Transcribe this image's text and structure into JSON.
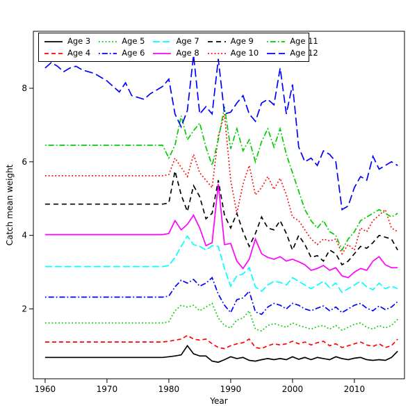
{
  "chart_data": {
    "type": "line",
    "title": "",
    "xlabel": "Year",
    "ylabel": "Catch mean weight",
    "x_start": 1960,
    "x_end": 2017,
    "x_ticks": [
      1960,
      1970,
      1980,
      1990,
      2000,
      2010
    ],
    "y_ticks": [
      2,
      4,
      6,
      8
    ],
    "xlim": [
      1958.1,
      2018.1
    ],
    "ylim": [
      0.1,
      9.55
    ],
    "grid": false,
    "legend_position": "top",
    "series": [
      {
        "name": "Age 3",
        "color": "#000000",
        "dash": "",
        "values": [
          0.68,
          0.68,
          0.68,
          0.68,
          0.68,
          0.68,
          0.68,
          0.68,
          0.68,
          0.68,
          0.68,
          0.68,
          0.68,
          0.68,
          0.68,
          0.68,
          0.68,
          0.68,
          0.68,
          0.68,
          0.7,
          0.72,
          0.75,
          1.0,
          0.78,
          0.72,
          0.72,
          0.58,
          0.55,
          0.62,
          0.7,
          0.65,
          0.68,
          0.6,
          0.58,
          0.62,
          0.65,
          0.62,
          0.65,
          0.62,
          0.7,
          0.63,
          0.68,
          0.62,
          0.68,
          0.65,
          0.62,
          0.7,
          0.65,
          0.62,
          0.66,
          0.68,
          0.62,
          0.6,
          0.62,
          0.6,
          0.68,
          0.85
        ]
      },
      {
        "name": "Age 4",
        "color": "#FF0000",
        "dash": "6,4",
        "values": [
          1.1,
          1.1,
          1.1,
          1.1,
          1.1,
          1.1,
          1.1,
          1.1,
          1.1,
          1.1,
          1.1,
          1.1,
          1.1,
          1.1,
          1.1,
          1.1,
          1.1,
          1.1,
          1.1,
          1.1,
          1.12,
          1.15,
          1.18,
          1.28,
          1.18,
          1.15,
          1.18,
          1.05,
          0.95,
          0.92,
          1.0,
          1.05,
          1.08,
          1.18,
          0.95,
          0.92,
          1.0,
          1.05,
          1.02,
          1.05,
          1.12,
          1.05,
          1.1,
          1.02,
          1.08,
          1.12,
          1.0,
          1.05,
          0.95,
          1.0,
          1.05,
          1.1,
          1.02,
          0.98,
          1.05,
          0.95,
          1.0,
          1.18
        ]
      },
      {
        "name": "Age 5",
        "color": "#00CD00",
        "dash": "1.8,3",
        "values": [
          1.62,
          1.62,
          1.62,
          1.62,
          1.62,
          1.62,
          1.62,
          1.62,
          1.62,
          1.62,
          1.62,
          1.62,
          1.62,
          1.62,
          1.62,
          1.62,
          1.62,
          1.62,
          1.62,
          1.62,
          1.65,
          1.95,
          2.1,
          2.05,
          2.1,
          1.95,
          2.05,
          2.15,
          1.75,
          1.55,
          1.48,
          1.7,
          1.75,
          1.95,
          1.45,
          1.4,
          1.55,
          1.6,
          1.55,
          1.5,
          1.62,
          1.55,
          1.5,
          1.45,
          1.52,
          1.55,
          1.45,
          1.55,
          1.42,
          1.5,
          1.58,
          1.62,
          1.5,
          1.45,
          1.55,
          1.48,
          1.55,
          1.72
        ]
      },
      {
        "name": "Age 6",
        "color": "#0000FF",
        "dash": "1.8,3,8,3",
        "values": [
          2.32,
          2.32,
          2.32,
          2.32,
          2.32,
          2.32,
          2.32,
          2.32,
          2.32,
          2.32,
          2.32,
          2.32,
          2.32,
          2.32,
          2.32,
          2.32,
          2.32,
          2.32,
          2.32,
          2.32,
          2.35,
          2.6,
          2.78,
          2.7,
          2.8,
          2.62,
          2.7,
          2.85,
          2.4,
          2.1,
          1.9,
          2.25,
          2.3,
          2.48,
          1.92,
          1.85,
          2.05,
          2.15,
          2.1,
          2.0,
          2.15,
          2.1,
          2.0,
          1.95,
          2.02,
          2.08,
          1.95,
          2.05,
          1.9,
          2.0,
          2.1,
          2.15,
          2.02,
          1.95,
          2.08,
          1.98,
          2.05,
          2.2
        ]
      },
      {
        "name": "Age 7",
        "color": "#00FFFF",
        "dash": "10,4",
        "values": [
          3.15,
          3.15,
          3.15,
          3.15,
          3.15,
          3.15,
          3.15,
          3.15,
          3.15,
          3.15,
          3.15,
          3.15,
          3.15,
          3.15,
          3.15,
          3.15,
          3.15,
          3.15,
          3.15,
          3.15,
          3.18,
          3.4,
          3.7,
          3.98,
          3.75,
          3.7,
          3.6,
          3.72,
          3.7,
          3.1,
          2.62,
          2.9,
          2.95,
          3.12,
          2.6,
          2.48,
          2.65,
          2.75,
          2.72,
          2.65,
          2.85,
          2.75,
          2.65,
          2.55,
          2.65,
          2.75,
          2.58,
          2.7,
          2.45,
          2.55,
          2.65,
          2.75,
          2.6,
          2.52,
          2.7,
          2.55,
          2.62,
          2.55
        ]
      },
      {
        "name": "Age 8",
        "color": "#FF00FF",
        "dash": "",
        "values": [
          4.02,
          4.02,
          4.02,
          4.02,
          4.02,
          4.02,
          4.02,
          4.02,
          4.02,
          4.02,
          4.02,
          4.02,
          4.02,
          4.02,
          4.02,
          4.02,
          4.02,
          4.02,
          4.02,
          4.02,
          4.05,
          4.4,
          4.15,
          4.3,
          4.55,
          4.2,
          3.72,
          3.8,
          5.4,
          3.75,
          3.78,
          3.3,
          3.1,
          3.35,
          3.9,
          3.5,
          3.4,
          3.35,
          3.42,
          3.3,
          3.35,
          3.28,
          3.2,
          3.05,
          3.1,
          3.18,
          3.05,
          3.12,
          2.9,
          2.85,
          3.0,
          3.1,
          3.05,
          3.3,
          3.42,
          3.2,
          3.12,
          3.12
        ]
      },
      {
        "name": "Age 9",
        "color": "#000000",
        "dash": "7,5",
        "values": [
          4.85,
          4.85,
          4.85,
          4.85,
          4.85,
          4.85,
          4.85,
          4.85,
          4.85,
          4.85,
          4.85,
          4.85,
          4.85,
          4.85,
          4.85,
          4.85,
          4.85,
          4.85,
          4.85,
          4.85,
          4.88,
          5.75,
          5.1,
          4.65,
          5.35,
          5.05,
          4.45,
          4.6,
          5.5,
          4.55,
          4.2,
          4.6,
          4.1,
          3.7,
          4.05,
          4.5,
          4.2,
          4.15,
          4.4,
          4.05,
          3.6,
          4.0,
          3.75,
          3.4,
          3.45,
          3.3,
          3.6,
          3.5,
          3.2,
          3.3,
          3.5,
          3.7,
          3.65,
          3.8,
          4.0,
          3.95,
          3.9,
          3.6
        ]
      },
      {
        "name": "Age 10",
        "color": "#FF0000",
        "dash": "1.8,3",
        "values": [
          5.62,
          5.62,
          5.62,
          5.62,
          5.62,
          5.62,
          5.62,
          5.62,
          5.62,
          5.62,
          5.62,
          5.62,
          5.62,
          5.62,
          5.62,
          5.62,
          5.62,
          5.62,
          5.62,
          5.62,
          5.65,
          6.1,
          5.85,
          5.6,
          6.2,
          5.7,
          5.5,
          5.3,
          6.7,
          7.3,
          5.5,
          4.6,
          5.4,
          5.9,
          5.1,
          5.3,
          5.6,
          5.25,
          5.55,
          5.1,
          4.5,
          4.4,
          4.15,
          3.9,
          3.75,
          3.9,
          3.85,
          3.9,
          3.5,
          3.75,
          3.6,
          4.2,
          4.1,
          4.4,
          4.55,
          4.7,
          4.2,
          4.1
        ]
      },
      {
        "name": "Age 11",
        "color": "#00CD00",
        "dash": "1.8,3,8,3",
        "values": [
          6.45,
          6.45,
          6.45,
          6.45,
          6.45,
          6.45,
          6.45,
          6.45,
          6.45,
          6.45,
          6.45,
          6.45,
          6.45,
          6.45,
          6.45,
          6.45,
          6.45,
          6.45,
          6.45,
          6.45,
          6.1,
          6.45,
          7.25,
          6.6,
          6.85,
          7.05,
          6.4,
          5.9,
          6.6,
          7.5,
          6.35,
          6.9,
          6.3,
          6.6,
          6.0,
          6.55,
          6.9,
          6.4,
          6.9,
          6.2,
          5.7,
          5.2,
          4.7,
          4.4,
          4.2,
          4.4,
          4.1,
          4.0,
          3.6,
          3.9,
          4.1,
          4.4,
          4.5,
          4.6,
          4.7,
          4.6,
          4.5,
          4.6
        ]
      },
      {
        "name": "Age 12",
        "color": "#0000FF",
        "dash": "12,5",
        "values": [
          8.55,
          8.7,
          8.6,
          8.45,
          8.55,
          8.6,
          8.5,
          8.45,
          8.4,
          8.3,
          8.2,
          8.05,
          7.9,
          8.15,
          7.8,
          7.75,
          7.7,
          7.85,
          7.95,
          8.05,
          8.25,
          7.3,
          6.95,
          7.4,
          8.9,
          7.3,
          7.5,
          7.3,
          8.8,
          7.3,
          7.35,
          7.6,
          7.8,
          7.3,
          7.1,
          7.6,
          7.7,
          7.55,
          8.55,
          7.3,
          8.1,
          6.4,
          6.0,
          6.1,
          5.9,
          6.3,
          6.2,
          6.0,
          4.7,
          4.8,
          5.3,
          5.6,
          5.5,
          6.15,
          5.8,
          5.9,
          6.0,
          5.9
        ]
      }
    ]
  }
}
